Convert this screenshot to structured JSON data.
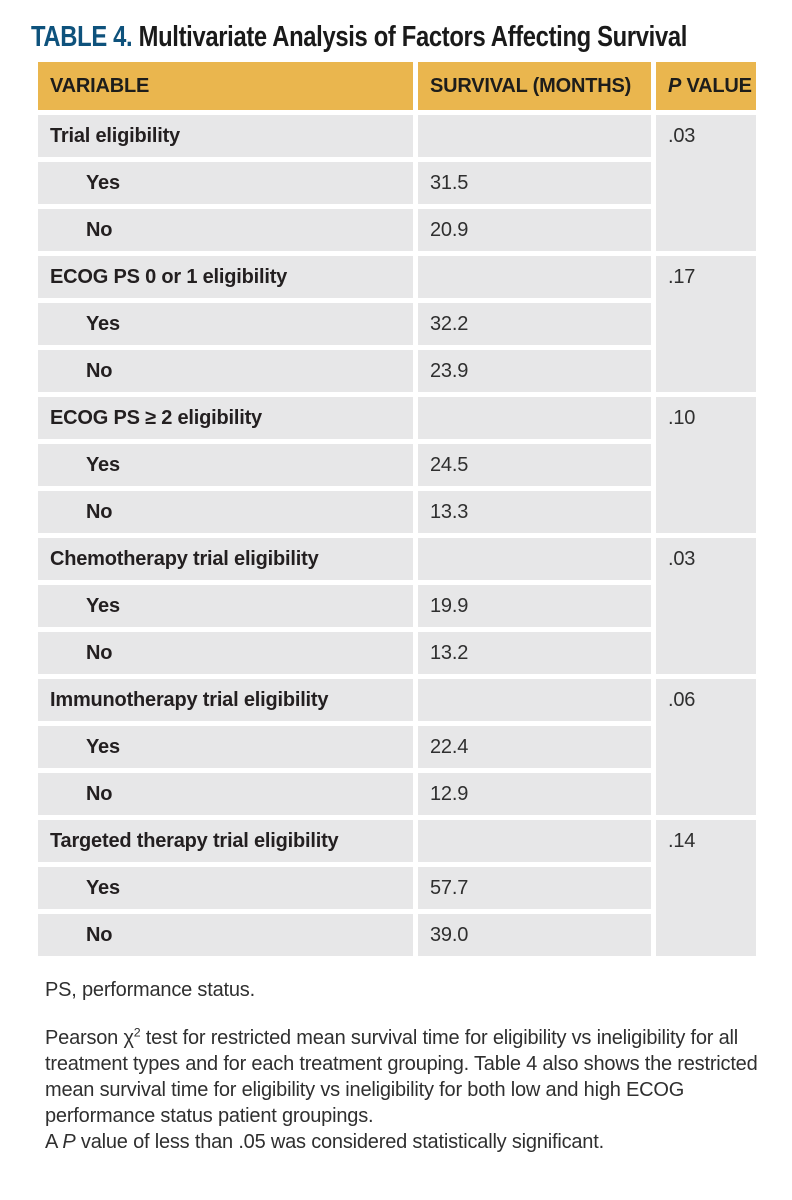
{
  "title": {
    "label": "TABLE 4.",
    "text": "Multivariate Analysis of Factors Affecting Survival"
  },
  "colors": {
    "accent_gold": "#eab64e",
    "title_blue": "#0e527c",
    "cell_gray": "#e7e7e8",
    "header_text": "#1d1d1b",
    "label_text": "#231f20",
    "value_text": "#2f2f2f"
  },
  "table": {
    "headers": {
      "variable": "VARIABLE",
      "survival": "SURVIVAL (MONTHS)",
      "p_italic": "P",
      "p_rest": " VALUE"
    },
    "groups": [
      {
        "variable": "Trial eligibility",
        "p_value": ".03",
        "rows": [
          {
            "label": "Yes",
            "survival": "31.5"
          },
          {
            "label": "No",
            "survival": "20.9"
          }
        ]
      },
      {
        "variable": "ECOG PS 0 or 1 eligibility",
        "p_value": ".17",
        "rows": [
          {
            "label": "Yes",
            "survival": "32.2"
          },
          {
            "label": "No",
            "survival": "23.9"
          }
        ]
      },
      {
        "variable": "ECOG PS ≥ 2 eligibility",
        "p_value": ".10",
        "rows": [
          {
            "label": "Yes",
            "survival": "24.5"
          },
          {
            "label": "No",
            "survival": "13.3"
          }
        ]
      },
      {
        "variable": "Chemotherapy trial eligibility",
        "p_value": ".03",
        "rows": [
          {
            "label": "Yes",
            "survival": "19.9"
          },
          {
            "label": "No",
            "survival": "13.2"
          }
        ]
      },
      {
        "variable": "Immunotherapy trial eligibility",
        "p_value": ".06",
        "rows": [
          {
            "label": "Yes",
            "survival": "22.4"
          },
          {
            "label": "No",
            "survival": "12.9"
          }
        ]
      },
      {
        "variable": "Targeted therapy trial eligibility",
        "p_value": ".14",
        "rows": [
          {
            "label": "Yes",
            "survival": "57.7"
          },
          {
            "label": "No",
            "survival": "39.0"
          }
        ]
      }
    ]
  },
  "footnotes": {
    "abbreviation": "PS, performance status.",
    "note": {
      "part1": "Pearson χ",
      "sup": "2",
      "part2": " test for restricted mean survival time for eligibility vs ineligi­bility for all treatment types and for each treatment grouping. Table 4 also shows the restricted mean survival time for eligibility vs ineligibility for both low and high ECOG performance status patient groupings.",
      "part3": "A ",
      "italic_p": "P",
      "part4": " value of less than .05 was considered statistically significant."
    }
  }
}
